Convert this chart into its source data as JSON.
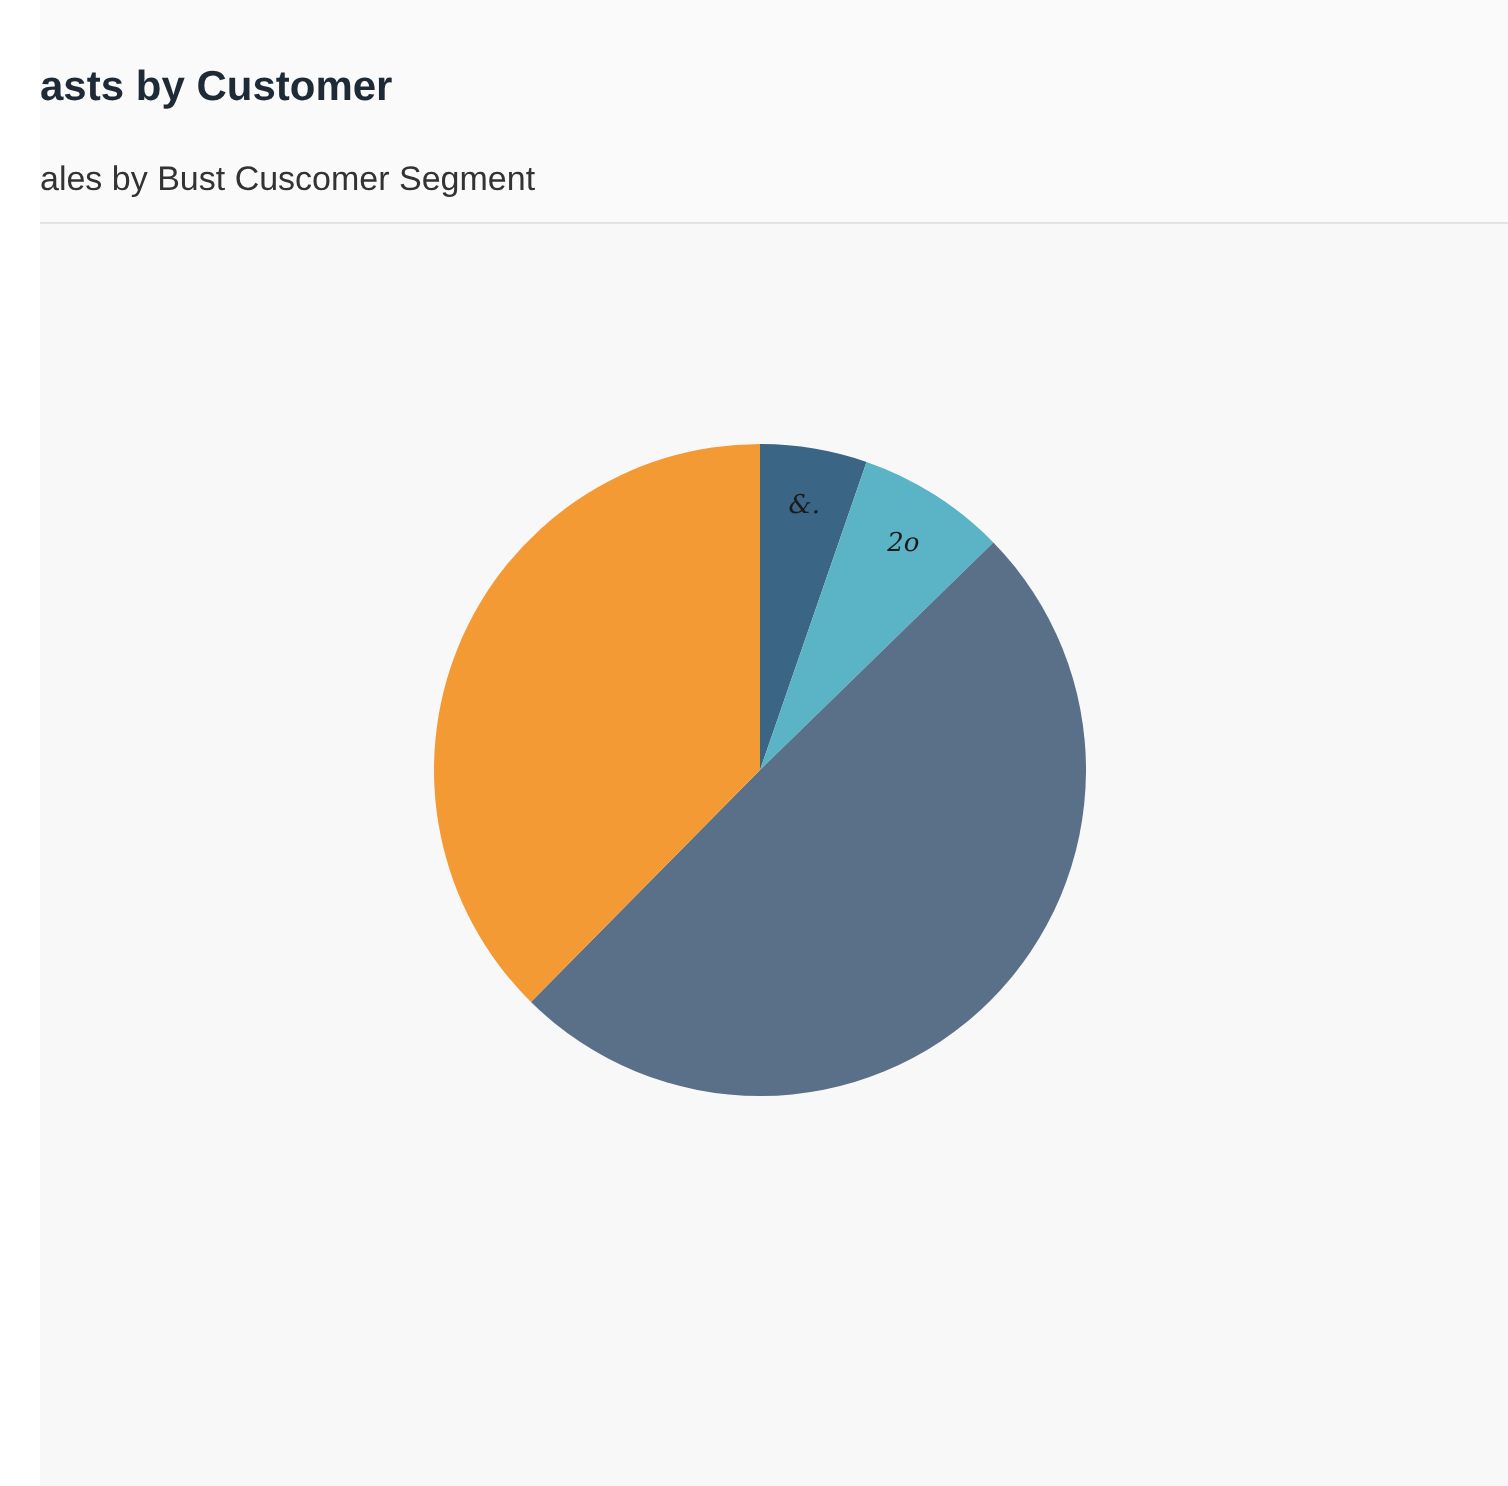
{
  "chart_data": {
    "type": "pie",
    "title": "asts by Customer",
    "subtitle": "ales by Bust Cuscomer Segment",
    "categories": [
      null,
      null,
      null,
      null
    ],
    "values": [
      5.3,
      7.4,
      49.7,
      37.6
    ],
    "annotations": [
      "&.",
      "2o"
    ],
    "colors": [
      "#3b6584",
      "#5ab4c6",
      "#5a7088",
      "#f39a34"
    ],
    "legend": false
  }
}
